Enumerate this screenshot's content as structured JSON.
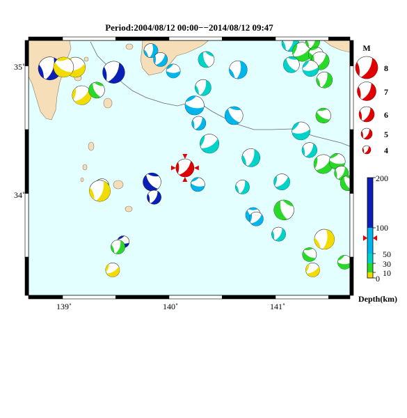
{
  "title": "Period:2004/08/12 00:00−−2014/08/12 09:47",
  "map": {
    "x_ticks": [
      "139˚",
      "140˚",
      "141˚"
    ],
    "y_ticks": [
      "35˚",
      "34˚"
    ]
  },
  "legend": {
    "magnitude": {
      "header": "M",
      "labels": [
        "8",
        "7",
        "6",
        "5",
        "4"
      ]
    },
    "depth": {
      "labels": [
        "200",
        "100",
        "50",
        "30",
        "10",
        "0"
      ],
      "axis_label": "Depth(km)",
      "marker_depth_km": 80,
      "colors": {
        "deep": "#0a1fb4",
        "intermediate": "#00b4ec",
        "shallow": "#00d2c8",
        "near_surface": "#2ad82a",
        "surface": "#f2dc00"
      }
    }
  },
  "colors": {
    "ocean": "#e4ffff",
    "land": "#f6dfb8",
    "highlight_event": "#e00000"
  },
  "events": [
    {
      "lon": 138.88,
      "lat": 34.98,
      "mag": 5.3,
      "color": "deep",
      "rot": 20
    },
    {
      "lon": 139.12,
      "lat": 34.99,
      "mag": 5.0,
      "color": "surface",
      "rot": 70
    },
    {
      "lon": 139.01,
      "lat": 34.99,
      "mag": 5.0,
      "color": "surface",
      "rot": 120
    },
    {
      "lon": 139.48,
      "lat": 34.95,
      "mag": 5.2,
      "color": "deep",
      "rot": 30
    },
    {
      "lon": 139.18,
      "lat": 34.77,
      "mag": 4.9,
      "color": "surface",
      "rot": 50
    },
    {
      "lon": 139.32,
      "lat": 34.81,
      "mag": 4.6,
      "color": "near_surface",
      "rot": 150
    },
    {
      "lon": 139.83,
      "lat": 35.12,
      "mag": 4.4,
      "color": "intermediate",
      "rot": 10
    },
    {
      "lon": 139.92,
      "lat": 35.05,
      "mag": 4.4,
      "color": "intermediate",
      "rot": 40
    },
    {
      "lon": 140.04,
      "lat": 34.96,
      "mag": 4.4,
      "color": "intermediate",
      "rot": 90
    },
    {
      "lon": 140.35,
      "lat": 35.05,
      "mag": 4.6,
      "color": "shallow",
      "rot": 160
    },
    {
      "lon": 140.32,
      "lat": 34.83,
      "mag": 4.6,
      "color": "shallow",
      "rot": 20
    },
    {
      "lon": 140.24,
      "lat": 34.69,
      "mag": 4.9,
      "color": "intermediate",
      "rot": 100
    },
    {
      "lon": 140.28,
      "lat": 34.55,
      "mag": 4.4,
      "color": "intermediate",
      "rot": 30
    },
    {
      "lon": 140.38,
      "lat": 34.39,
      "mag": 4.9,
      "color": "shallow",
      "rot": 60
    },
    {
      "lon": 140.65,
      "lat": 34.97,
      "mag": 4.8,
      "color": "intermediate",
      "rot": 10
    },
    {
      "lon": 140.61,
      "lat": 34.61,
      "mag": 4.8,
      "color": "intermediate",
      "rot": 140
    },
    {
      "lon": 140.77,
      "lat": 34.28,
      "mag": 4.8,
      "color": "shallow",
      "rot": 20
    },
    {
      "lon": 141.24,
      "lat": 34.49,
      "mag": 4.8,
      "color": "shallow",
      "rot": 80
    },
    {
      "lon": 141.32,
      "lat": 34.34,
      "mag": 4.5,
      "color": "shallow",
      "rot": 30
    },
    {
      "lon": 141.45,
      "lat": 34.61,
      "mag": 4.5,
      "color": "near_surface",
      "rot": 120
    },
    {
      "lon": 141.45,
      "lat": 34.23,
      "mag": 4.9,
      "color": "near_surface",
      "rot": 50
    },
    {
      "lon": 141.58,
      "lat": 34.25,
      "mag": 4.6,
      "color": "near_surface",
      "rot": 100
    },
    {
      "lon": 141.62,
      "lat": 34.16,
      "mag": 4.4,
      "color": "near_surface",
      "rot": 30
    },
    {
      "lon": 141.68,
      "lat": 34.08,
      "mag": 4.5,
      "color": "near_surface",
      "rot": 150
    },
    {
      "lon": 141.14,
      "lat": 35.18,
      "mag": 4.7,
      "color": "shallow",
      "rot": 20
    },
    {
      "lon": 141.25,
      "lat": 35.11,
      "mag": 4.9,
      "color": "near_surface",
      "rot": 60
    },
    {
      "lon": 141.35,
      "lat": 35.19,
      "mag": 4.4,
      "color": "near_surface",
      "rot": 20
    },
    {
      "lon": 141.38,
      "lat": 35.09,
      "mag": 4.5,
      "color": "near_surface",
      "rot": 110
    },
    {
      "lon": 141.42,
      "lat": 35.04,
      "mag": 4.8,
      "color": "near_surface",
      "rot": 40
    },
    {
      "lon": 141.15,
      "lat": 35.01,
      "mag": 4.6,
      "color": "shallow",
      "rot": 140
    },
    {
      "lon": 141.33,
      "lat": 34.98,
      "mag": 4.6,
      "color": "shallow",
      "rot": 80
    },
    {
      "lon": 141.46,
      "lat": 34.89,
      "mag": 4.6,
      "color": "near_surface",
      "rot": 20
    },
    {
      "lon": 141.06,
      "lat": 34.09,
      "mag": 4.6,
      "color": "shallow",
      "rot": 50
    },
    {
      "lon": 141.08,
      "lat": 33.87,
      "mag": 5.0,
      "color": "near_surface",
      "rot": 160
    },
    {
      "lon": 141.03,
      "lat": 33.68,
      "mag": 4.4,
      "color": "shallow",
      "rot": 30
    },
    {
      "lon": 141.32,
      "lat": 33.52,
      "mag": 4.4,
      "color": "near_surface",
      "rot": 120
    },
    {
      "lon": 141.35,
      "lat": 33.4,
      "mag": 4.4,
      "color": "surface",
      "rot": 60
    },
    {
      "lon": 141.46,
      "lat": 33.64,
      "mag": 5.0,
      "color": "surface",
      "rot": 10
    },
    {
      "lon": 141.65,
      "lat": 33.46,
      "mag": 4.4,
      "color": "near_surface",
      "rot": 90
    },
    {
      "lon": 140.69,
      "lat": 34.05,
      "mag": 4.4,
      "color": "shallow",
      "rot": 20
    },
    {
      "lon": 140.79,
      "lat": 33.83,
      "mag": 4.5,
      "color": "intermediate",
      "rot": 130
    },
    {
      "lon": 140.82,
      "lat": 33.8,
      "mag": 4.4,
      "color": "intermediate",
      "rot": 50
    },
    {
      "lon": 140.27,
      "lat": 34.07,
      "mag": 4.4,
      "color": "intermediate",
      "rot": 100
    },
    {
      "lon": 139.84,
      "lat": 34.09,
      "mag": 4.8,
      "color": "deep",
      "rot": 140
    },
    {
      "lon": 139.86,
      "lat": 33.97,
      "mag": 4.4,
      "color": "deep",
      "rot": 30
    },
    {
      "lon": 139.37,
      "lat": 34.06,
      "mag": 4.4,
      "color": "near_surface",
      "rot": 60
    },
    {
      "lon": 139.35,
      "lat": 34.02,
      "mag": 5.1,
      "color": "surface",
      "rot": 20
    },
    {
      "lon": 139.57,
      "lat": 33.62,
      "mag": 4.2,
      "color": "deep",
      "rot": 100
    },
    {
      "lon": 139.52,
      "lat": 33.58,
      "mag": 4.4,
      "color": "near_surface",
      "rot": 20
    },
    {
      "lon": 139.47,
      "lat": 33.4,
      "mag": 4.4,
      "color": "surface",
      "rot": 60
    }
  ],
  "highlight": {
    "lon": 140.15,
    "lat": 34.2,
    "mag": 4.8
  }
}
